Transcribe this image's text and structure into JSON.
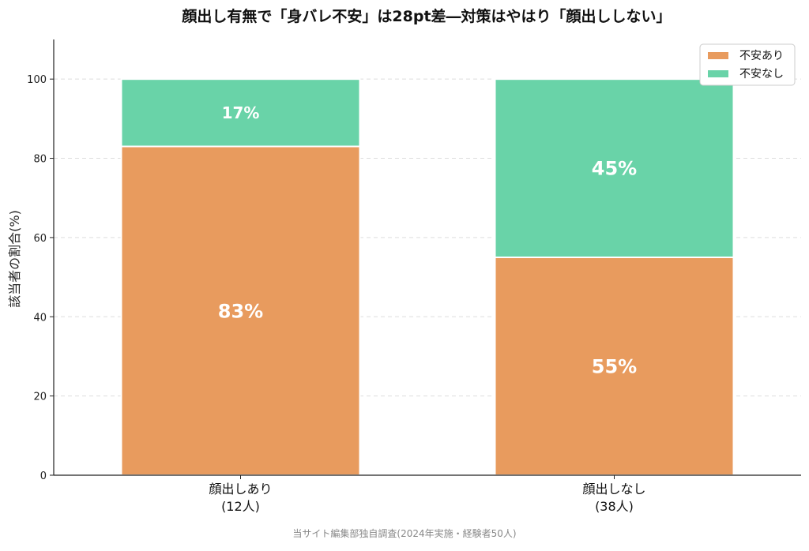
{
  "chart_data": {
    "type": "bar",
    "stacked": true,
    "title": "顔出し有無で「身バレ不安」は28pt差―対策はやはり「顔出ししない」",
    "ylabel": "該当者の割合(%)",
    "xlabel": "",
    "ylim": [
      0,
      110
    ],
    "yticks": [
      0,
      20,
      40,
      60,
      80,
      100
    ],
    "grid": true,
    "legend_position": "top-right",
    "categories": [
      {
        "line1": "顔出しあり",
        "line2": "(12人)"
      },
      {
        "line1": "顔出しなし",
        "line2": "(38人)"
      }
    ],
    "series": [
      {
        "name": "不安あり",
        "color": "#E89B5E",
        "values": [
          83,
          55
        ],
        "labels": [
          "83%",
          "55%"
        ]
      },
      {
        "name": "不安なし",
        "color": "#69D3A8",
        "values": [
          17,
          45
        ],
        "labels": [
          "17%",
          "45%"
        ]
      }
    ],
    "source_note": "当サイト編集部独自調査(2024年実施・経験者50人)"
  }
}
